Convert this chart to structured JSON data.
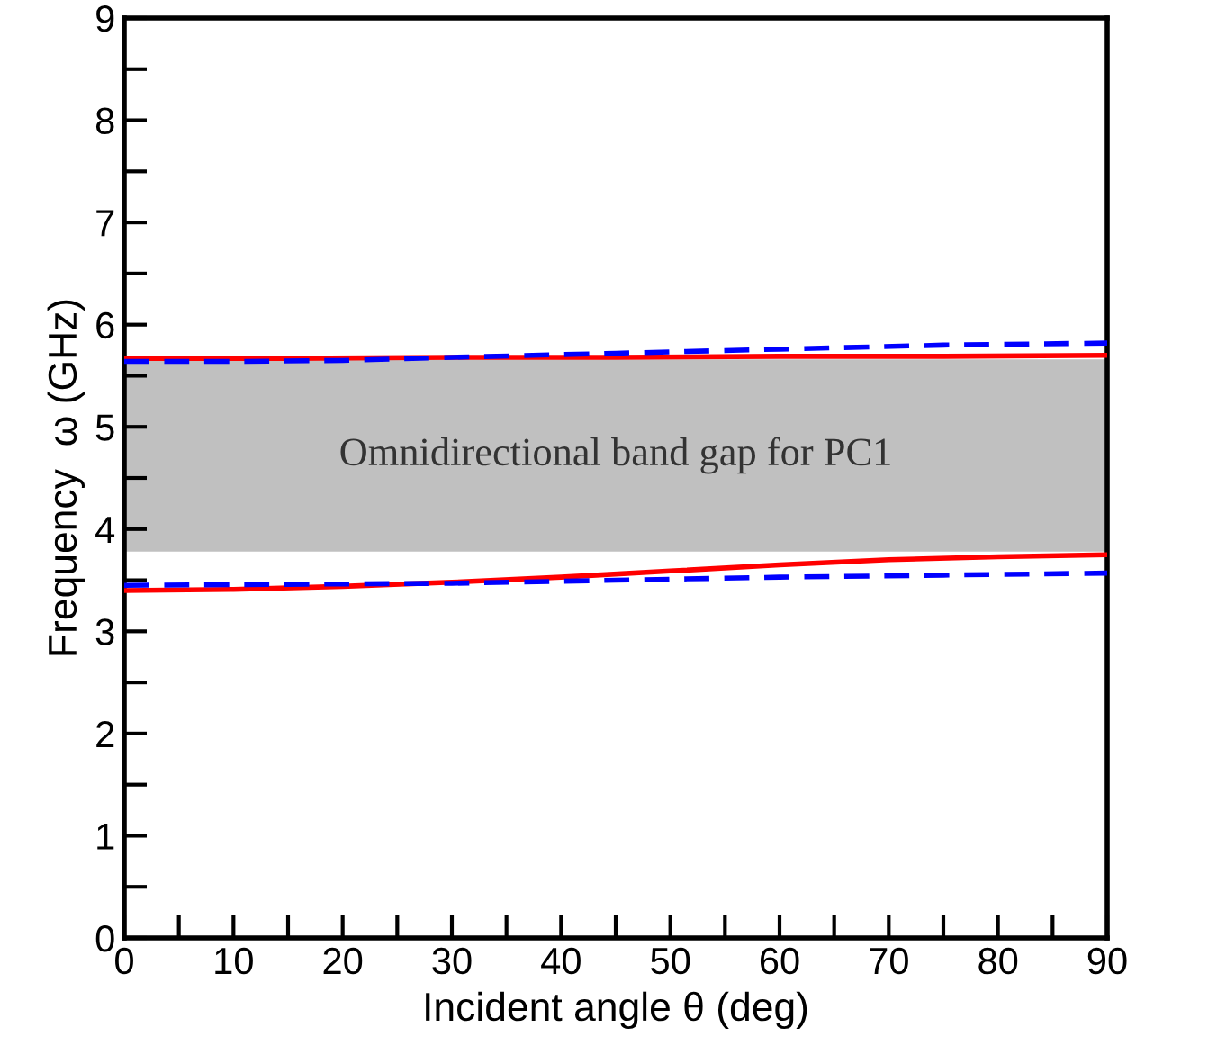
{
  "chart_data": {
    "type": "line",
    "xlabel": "Incident angle θ (deg)",
    "ylabel": "Frequency  ω (GHz)",
    "xlim": [
      0,
      90
    ],
    "ylim": [
      0,
      9
    ],
    "xticks": [
      0,
      {
        "value": 5,
        "label": null
      },
      10,
      {
        "value": 15,
        "label": null
      },
      20,
      {
        "value": 25,
        "label": null
      },
      30,
      {
        "value": 35,
        "label": null
      },
      40,
      {
        "value": 45,
        "label": null
      },
      50,
      {
        "value": 55,
        "label": null
      },
      60,
      {
        "value": 65,
        "label": null
      },
      70,
      {
        "value": 75,
        "label": null
      },
      80,
      {
        "value": 85,
        "label": null
      },
      90
    ],
    "yticks": [
      0,
      {
        "value": 0.5,
        "label": null
      },
      1,
      {
        "value": 1.5,
        "label": null
      },
      2,
      {
        "value": 2.5,
        "label": null
      },
      3,
      {
        "value": 3.5,
        "label": null
      },
      4,
      {
        "value": 4.5,
        "label": null
      },
      5,
      {
        "value": 5.5,
        "label": null
      },
      6,
      {
        "value": 6.5,
        "label": null
      },
      7,
      {
        "value": 7.5,
        "label": null
      },
      8,
      {
        "value": 8.5,
        "label": null
      },
      9
    ],
    "grid": false,
    "legend": false,
    "marker": "none",
    "bands": [
      {
        "axis": "y",
        "from": 3.78,
        "to": 5.66,
        "label": "Omnidirectional band gap for PC1",
        "color": "#c0c0c0"
      }
    ],
    "series": [
      {
        "color": "#ff0000",
        "line_style": "solid",
        "x": [
          0,
          15,
          30,
          45,
          60,
          75,
          90
        ],
        "values": [
          5.67,
          5.67,
          5.68,
          5.68,
          5.69,
          5.69,
          5.7
        ]
      },
      {
        "color": "#0000ff",
        "line_style": "dashed",
        "x": [
          0,
          10,
          20,
          30,
          45,
          60,
          75,
          90
        ],
        "values": [
          5.64,
          5.64,
          5.65,
          5.68,
          5.72,
          5.76,
          5.8,
          5.82
        ]
      },
      {
        "color": "#ff0000",
        "line_style": "solid",
        "x": [
          0,
          10,
          20,
          30,
          40,
          50,
          60,
          70,
          80,
          90
        ],
        "values": [
          3.4,
          3.41,
          3.44,
          3.48,
          3.53,
          3.59,
          3.65,
          3.7,
          3.73,
          3.75
        ]
      },
      {
        "color": "#0000ff",
        "line_style": "dashed",
        "x": [
          0,
          15,
          30,
          45,
          60,
          75,
          90
        ],
        "values": [
          3.45,
          3.46,
          3.47,
          3.5,
          3.53,
          3.55,
          3.57
        ]
      }
    ]
  }
}
